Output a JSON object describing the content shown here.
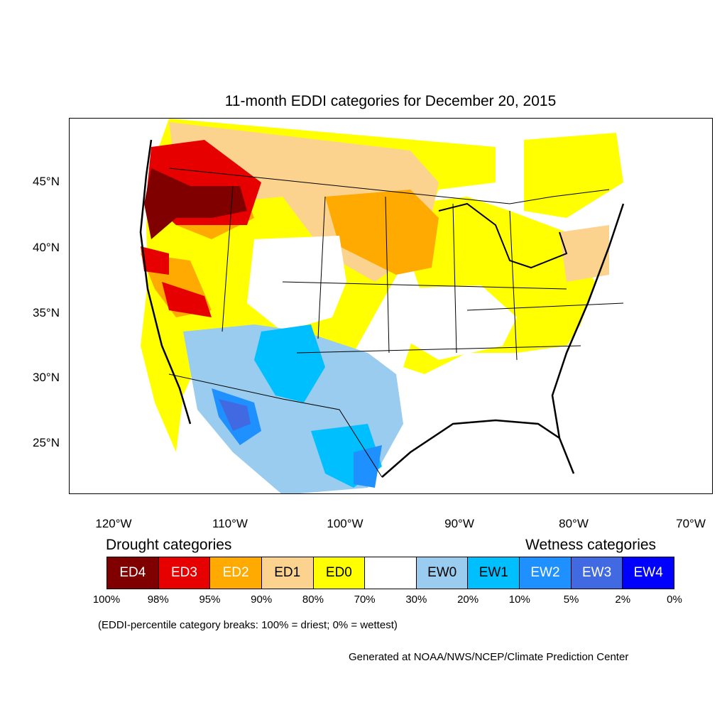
{
  "title": "11-month EDDI categories for December 20, 2015",
  "map": {
    "lat_ticks": [
      "45°N",
      "40°N",
      "35°N",
      "30°N",
      "25°N"
    ],
    "lon_ticks": [
      "120°W",
      "110°W",
      "100°W",
      "90°W",
      "80°W",
      "70°W"
    ]
  },
  "legend": {
    "drought_heading": "Drought categories",
    "wetness_heading": "Wetness categories",
    "categories": [
      {
        "label": "ED4",
        "color": "#800000",
        "text_color": "#ffffff"
      },
      {
        "label": "ED3",
        "color": "#e60000",
        "text_color": "#ffffff"
      },
      {
        "label": "ED2",
        "color": "#ffaa00",
        "text_color": "#ffffff"
      },
      {
        "label": "ED1",
        "color": "#fcd38e",
        "text_color": "#000000"
      },
      {
        "label": "ED0",
        "color": "#ffff00",
        "text_color": "#000000"
      },
      {
        "label": "",
        "color": "#ffffff",
        "text_color": "#000000"
      },
      {
        "label": "EW0",
        "color": "#99ccee",
        "text_color": "#000000"
      },
      {
        "label": "EW1",
        "color": "#00bfff",
        "text_color": "#000000"
      },
      {
        "label": "EW2",
        "color": "#1e90ff",
        "text_color": "#ffffff"
      },
      {
        "label": "EW3",
        "color": "#4169e1",
        "text_color": "#ffffff"
      },
      {
        "label": "EW4",
        "color": "#0000ff",
        "text_color": "#ffffff"
      }
    ],
    "percentiles": [
      "100%",
      "98%",
      "95%",
      "90%",
      "80%",
      "70%",
      "30%",
      "20%",
      "10%",
      "5%",
      "2%",
      "0%"
    ],
    "note": "(EDDI-percentile category breaks: 100% = driest; 0% = wettest)"
  },
  "credit": "Generated at NOAA/NWS/NCEP/Climate Prediction Center"
}
